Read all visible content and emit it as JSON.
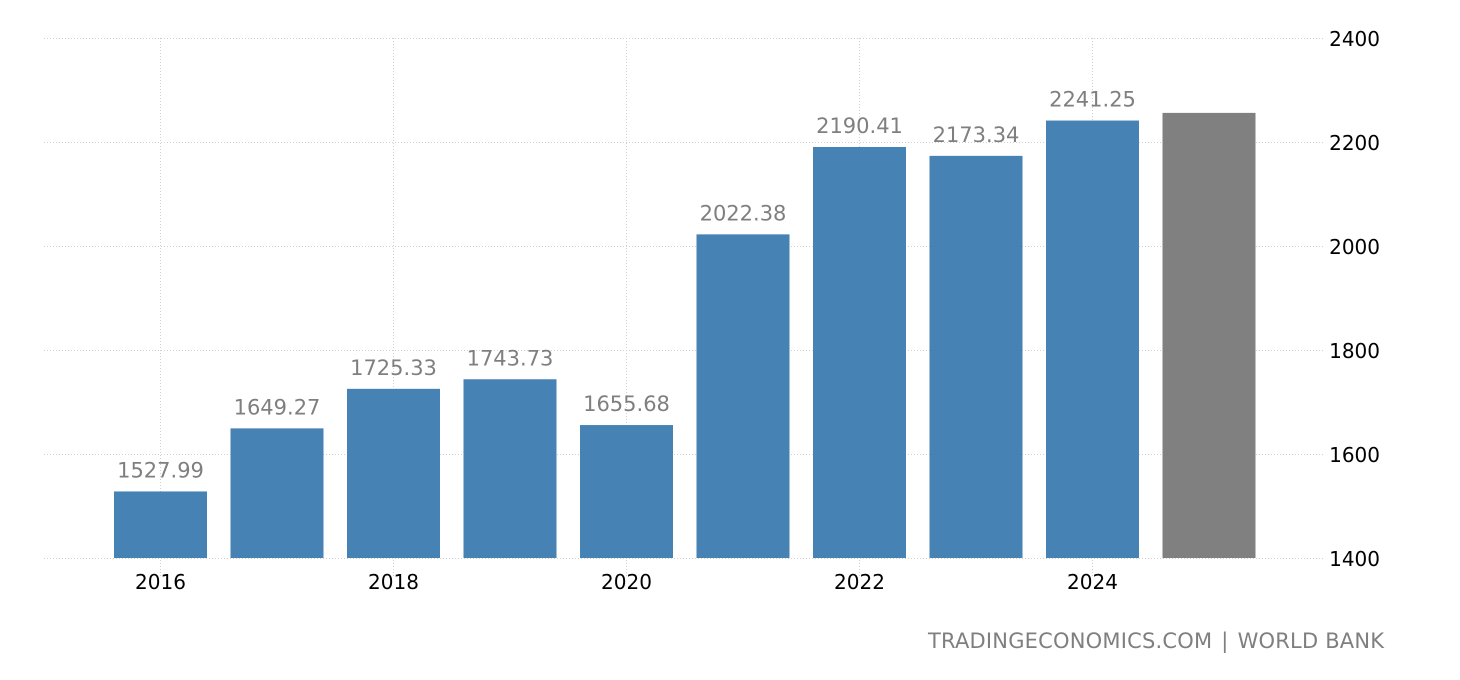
{
  "chart_data": {
    "type": "bar",
    "title": "",
    "xlabel": "",
    "ylabel": "",
    "categories": [
      "2016",
      "2017",
      "2018",
      "2019",
      "2020",
      "2021",
      "2022",
      "2023",
      "2024",
      "2025"
    ],
    "values": [
      1527.99,
      1649.27,
      1725.33,
      1743.73,
      1655.68,
      2022.38,
      2190.41,
      2173.34,
      2241.25,
      2256
    ],
    "data_labels": [
      "1527.99",
      "1649.27",
      "1725.33",
      "1743.73",
      "1655.68",
      "2022.38",
      "2190.41",
      "2173.34",
      "2241.25",
      ""
    ],
    "bar_colors": [
      "#4682b4",
      "#4682b4",
      "#4682b4",
      "#4682b4",
      "#4682b4",
      "#4682b4",
      "#4682b4",
      "#4682b4",
      "#4682b4",
      "#808080"
    ],
    "forecast_index": 9,
    "x_tick_labels": [
      "2016",
      "2018",
      "2020",
      "2022",
      "2024"
    ],
    "x_tick_indices": [
      0,
      2,
      4,
      6,
      8
    ],
    "y_ticks": [
      1400,
      1600,
      1800,
      2000,
      2200,
      2400
    ],
    "ylim": [
      1400,
      2400
    ],
    "y_axis_position": "right",
    "grid": true,
    "legend": null
  },
  "colors": {
    "bar": "#4682b4",
    "forecast_bar": "#808080",
    "data_label": "#7f7f7f",
    "tick_label": "#000000",
    "grid": "#d0d0d0",
    "footer": "#7f7f7f"
  },
  "footer": {
    "source_site": "TRADINGECONOMICS.COM",
    "separator": "|",
    "source_org": "WORLD BANK"
  }
}
